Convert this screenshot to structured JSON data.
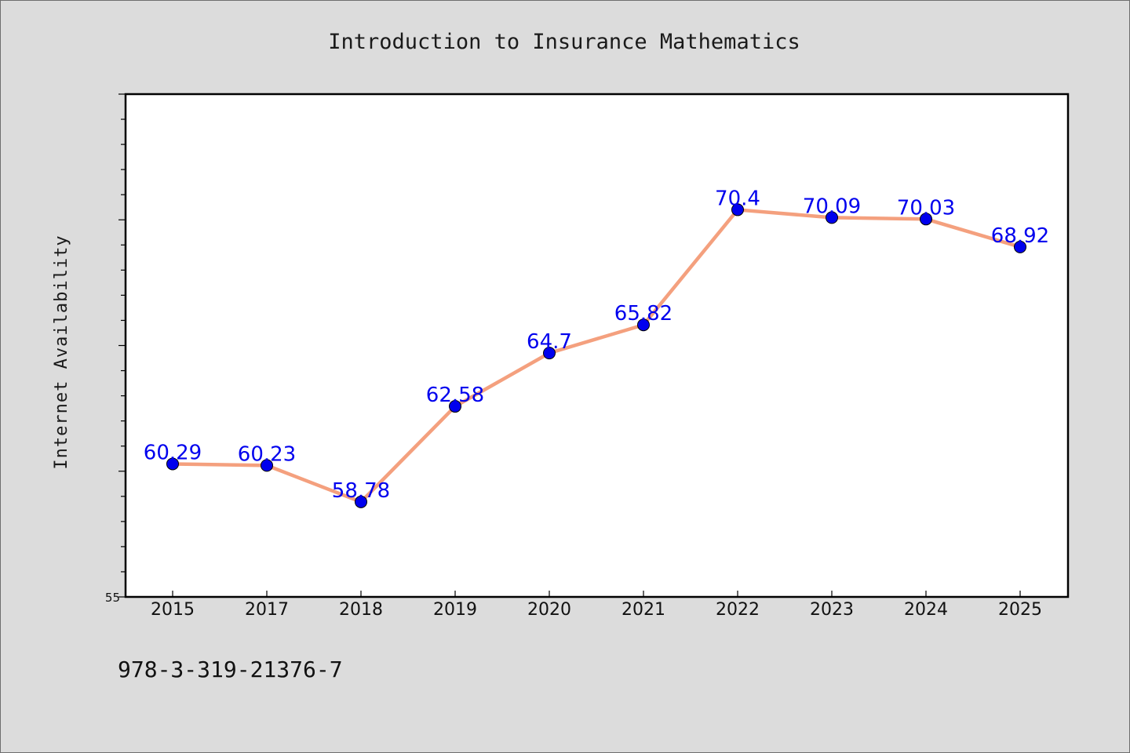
{
  "chart_data": {
    "type": "line",
    "title": "Introduction to Insurance Mathematics",
    "xlabel": "",
    "ylabel": "Internet Availability",
    "categories": [
      "2015",
      "2017",
      "2018",
      "2019",
      "2020",
      "2021",
      "2022",
      "2023",
      "2024",
      "2025"
    ],
    "values": [
      60.29,
      60.23,
      58.78,
      62.58,
      64.7,
      65.82,
      70.4,
      70.09,
      70.03,
      68.92
    ],
    "data_labels": [
      "60.29",
      "60.23",
      "58.78",
      "62.58",
      "64.7",
      "65.82",
      "70.4",
      "70.09",
      "70.03",
      "68.92"
    ],
    "ylim": [
      55,
      75
    ],
    "yticks": [
      {
        "value": 55,
        "label": "55"
      }
    ],
    "ytick_step_minor": 1,
    "grid": false,
    "legend": "none",
    "colors": {
      "line": "#f4a07e",
      "marker": "#0000ee",
      "data_label": "#0000ee",
      "plot_background": "#ffffff",
      "page_background": "#dcdcdc",
      "frame": "#000000"
    }
  },
  "footer": {
    "code": "978-3-319-21376-7"
  }
}
